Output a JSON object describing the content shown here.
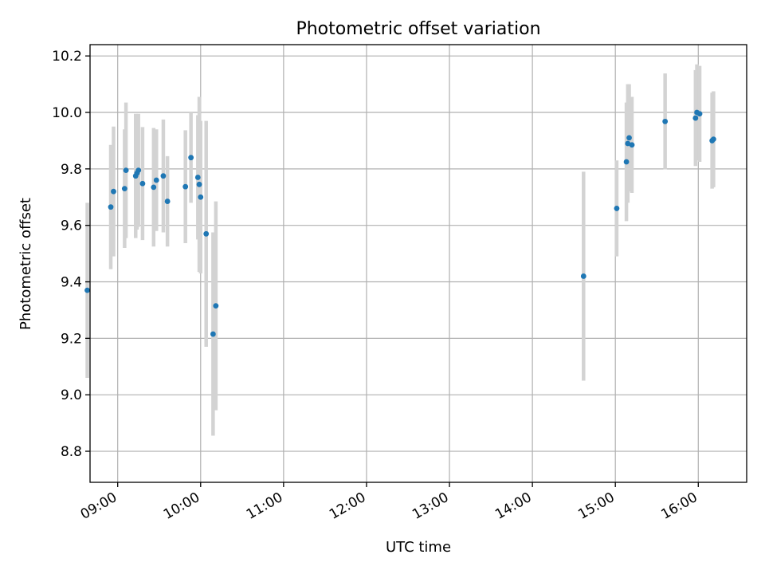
{
  "chart_data": {
    "type": "scatter",
    "title": "Photometric offset variation",
    "xlabel": "UTC time",
    "ylabel": "Photometric offset",
    "xlim": [
      "08:40",
      "16:35"
    ],
    "ylim": [
      8.69,
      10.24
    ],
    "x_ticks": [
      "09:00",
      "10:00",
      "11:00",
      "12:00",
      "13:00",
      "14:00",
      "15:00",
      "16:00"
    ],
    "y_ticks": [
      8.8,
      9.0,
      9.2,
      9.4,
      9.6,
      9.8,
      10.0,
      10.2
    ],
    "y_tick_labels": [
      "8.8",
      "9.0",
      "9.2",
      "9.4",
      "9.6",
      "9.8",
      "10.0",
      "10.2"
    ],
    "grid": true,
    "point_color": "#1f77b4",
    "errorbar_color": "#d3d3d3",
    "points": [
      {
        "x": "08:38",
        "y": 9.37,
        "err": 0.31
      },
      {
        "x": "08:55",
        "y": 9.665,
        "err": 0.22
      },
      {
        "x": "08:57",
        "y": 9.72,
        "err": 0.23
      },
      {
        "x": "09:05",
        "y": 9.73,
        "err": 0.21
      },
      {
        "x": "09:06",
        "y": 9.795,
        "err": 0.24
      },
      {
        "x": "09:13",
        "y": 9.775,
        "err": 0.22
      },
      {
        "x": "09:14",
        "y": 9.785,
        "err": 0.2
      },
      {
        "x": "09:15",
        "y": 9.795,
        "err": 0.2
      },
      {
        "x": "09:18",
        "y": 9.748,
        "err": 0.2
      },
      {
        "x": "09:26",
        "y": 9.735,
        "err": 0.21
      },
      {
        "x": "09:28",
        "y": 9.76,
        "err": 0.18
      },
      {
        "x": "09:33",
        "y": 9.775,
        "err": 0.2
      },
      {
        "x": "09:36",
        "y": 9.685,
        "err": 0.16
      },
      {
        "x": "09:49",
        "y": 9.737,
        "err": 0.2
      },
      {
        "x": "09:53",
        "y": 9.84,
        "err": 0.16
      },
      {
        "x": "09:58",
        "y": 9.77,
        "err": 0.22
      },
      {
        "x": "09:59",
        "y": 9.745,
        "err": 0.31
      },
      {
        "x": "10:00",
        "y": 9.7,
        "err": 0.27
      },
      {
        "x": "10:04",
        "y": 9.57,
        "err": 0.4
      },
      {
        "x": "10:09",
        "y": 9.215,
        "err": 0.36
      },
      {
        "x": "10:11",
        "y": 9.315,
        "err": 0.37
      },
      {
        "x": "14:37",
        "y": 9.42,
        "err": 0.37
      },
      {
        "x": "15:01",
        "y": 9.66,
        "err": 0.17
      },
      {
        "x": "15:08",
        "y": 9.825,
        "err": 0.21
      },
      {
        "x": "15:09",
        "y": 9.89,
        "err": 0.21
      },
      {
        "x": "15:10",
        "y": 9.91,
        "err": 0.19
      },
      {
        "x": "15:12",
        "y": 9.885,
        "err": 0.17
      },
      {
        "x": "15:36",
        "y": 9.968,
        "err": 0.17
      },
      {
        "x": "15:58",
        "y": 9.98,
        "err": 0.17
      },
      {
        "x": "15:59",
        "y": 10.0,
        "err": 0.17
      },
      {
        "x": "16:01",
        "y": 9.995,
        "err": 0.17
      },
      {
        "x": "16:10",
        "y": 9.9,
        "err": 0.17
      },
      {
        "x": "16:11",
        "y": 9.905,
        "err": 0.17
      }
    ]
  }
}
